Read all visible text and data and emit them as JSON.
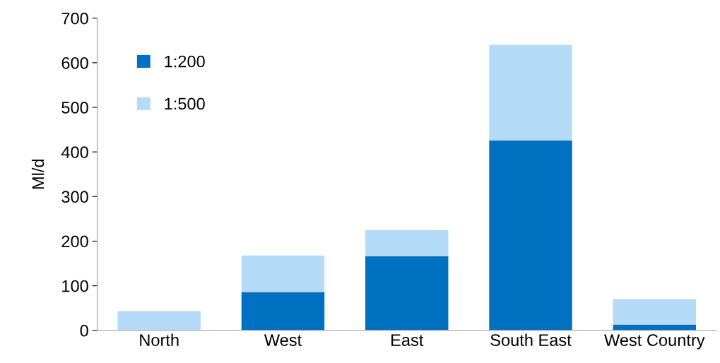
{
  "chart_data": {
    "type": "bar",
    "stacked": true,
    "ylabel": "Ml/d",
    "categories": [
      "North",
      "West",
      "East",
      "South East",
      "West Country"
    ],
    "series": [
      {
        "name": "1:200",
        "color": "#0070c0",
        "values": [
          null,
          86,
          166,
          426,
          13
        ]
      },
      {
        "name": "1:500",
        "color": "#b4dcf8",
        "values": [
          43,
          82,
          59,
          214,
          57
        ]
      }
    ],
    "ylim": [
      0,
      700
    ],
    "yticks": [
      0,
      100,
      200,
      300,
      400,
      500,
      600,
      700
    ],
    "grid": false,
    "legend": "top left"
  }
}
